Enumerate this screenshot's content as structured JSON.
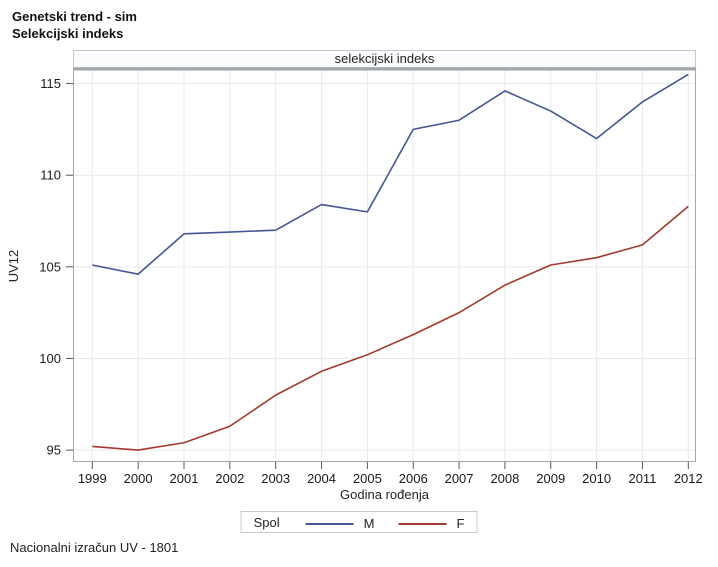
{
  "header": {
    "title_line1": "Genetski trend - sim",
    "title_line2": "Selekcijski indeks"
  },
  "footer": {
    "note": "Nacionalni izračun UV - 1801"
  },
  "chart_data": {
    "type": "line",
    "panel_title": "selekcijski indeks",
    "xlabel": "Godina rođenja",
    "ylabel": "UV12",
    "x": [
      1999,
      2000,
      2001,
      2002,
      2003,
      2004,
      2005,
      2006,
      2007,
      2008,
      2009,
      2010,
      2011,
      2012
    ],
    "series": [
      {
        "name": "M",
        "color": "#445694",
        "values": [
          105.1,
          104.6,
          106.8,
          106.9,
          107.0,
          108.4,
          108.0,
          112.5,
          113.0,
          114.6,
          113.5,
          112.0,
          114.0,
          115.5
        ]
      },
      {
        "name": "F",
        "color": "#A23A2E",
        "values": [
          95.2,
          95.0,
          95.4,
          96.3,
          98.0,
          99.3,
          100.2,
          101.3,
          102.5,
          104.0,
          105.1,
          105.5,
          106.2,
          108.3
        ]
      }
    ],
    "legend": {
      "title": "Spol",
      "position": "bottom"
    },
    "ylim": [
      94.35,
      115.85
    ],
    "yticks": [
      95,
      100,
      105,
      110,
      115
    ],
    "grid": true,
    "colors": {
      "gridline": "#e9e9ed",
      "frame": "#a2a5ad",
      "tick": "#555555",
      "text": "#1a1a1a"
    }
  }
}
